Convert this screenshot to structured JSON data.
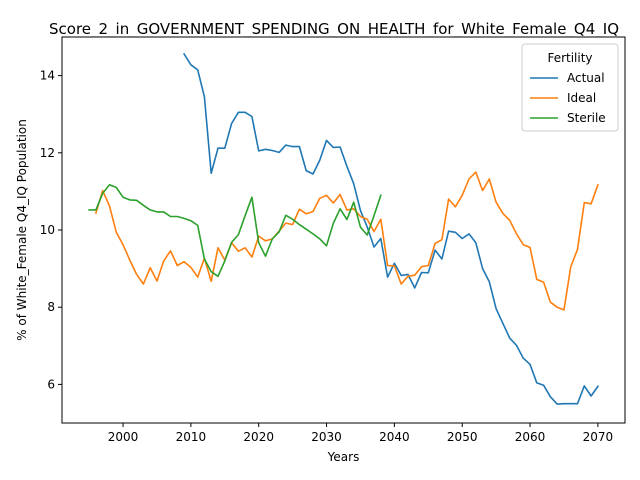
{
  "chart_data": {
    "type": "line",
    "title": "Score_2_in_GOVERNMENT_SPENDING_ON_HEALTH_for_White_Female_Q4_IQ",
    "xlabel": "Years",
    "ylabel": "% of White_Female Q4_IQ Population",
    "xlim": [
      1991,
      2074
    ],
    "ylim": [
      5.0,
      15.0
    ],
    "xticks": [
      2000,
      2010,
      2020,
      2030,
      2040,
      2050,
      2060,
      2070
    ],
    "yticks": [
      6,
      8,
      10,
      12,
      14
    ],
    "grid": false,
    "legend": {
      "title": "Fertility",
      "placement": "top-right"
    },
    "series": [
      {
        "name": "Actual",
        "color": "#1f77b4",
        "x": [
          2009,
          2010,
          2011,
          2012,
          2013,
          2014,
          2015,
          2016,
          2017,
          2018,
          2019,
          2020,
          2021,
          2022,
          2023,
          2024,
          2025,
          2026,
          2027,
          2028,
          2029,
          2030,
          2031,
          2032,
          2033,
          2034,
          2035,
          2036,
          2037,
          2038,
          2039,
          2040,
          2041,
          2042,
          2043,
          2044,
          2045,
          2046,
          2047,
          2048,
          2049,
          2050,
          2051,
          2052,
          2053,
          2054,
          2055,
          2056,
          2057,
          2058,
          2059,
          2060,
          2061,
          2062,
          2063,
          2064,
          2065,
          2066,
          2067,
          2068,
          2069,
          2070
        ],
        "values": [
          14.56,
          14.28,
          14.15,
          13.45,
          11.47,
          12.12,
          12.12,
          12.76,
          13.05,
          13.05,
          12.94,
          12.05,
          12.09,
          12.06,
          12.01,
          12.2,
          12.16,
          12.16,
          11.54,
          11.45,
          11.81,
          12.32,
          12.14,
          12.15,
          11.65,
          11.2,
          10.5,
          10.08,
          9.56,
          9.78,
          8.78,
          9.14,
          8.82,
          8.85,
          8.5,
          8.9,
          8.89,
          9.48,
          9.25,
          9.97,
          9.94,
          9.78,
          9.9,
          9.67,
          9.0,
          8.66,
          7.96,
          7.58,
          7.2,
          7.01,
          6.68,
          6.52,
          6.04,
          5.98,
          5.68,
          5.49,
          5.5,
          5.5,
          5.5,
          5.96,
          5.7,
          5.95
        ]
      },
      {
        "name": "Ideal",
        "color": "#ff7f0e",
        "x": [
          1996,
          1997,
          1998,
          1999,
          2000,
          2001,
          2002,
          2003,
          2004,
          2005,
          2006,
          2007,
          2008,
          2009,
          2010,
          2011,
          2012,
          2013,
          2014,
          2015,
          2016,
          2017,
          2018,
          2019,
          2020,
          2021,
          2022,
          2023,
          2024,
          2025,
          2026,
          2027,
          2028,
          2029,
          2030,
          2031,
          2032,
          2033,
          2034,
          2035,
          2036,
          2037,
          2038,
          2039,
          2040,
          2041,
          2042,
          2043,
          2044,
          2045,
          2046,
          2047,
          2048,
          2049,
          2050,
          2051,
          2052,
          2053,
          2054,
          2055,
          2056,
          2057,
          2058,
          2059,
          2060,
          2061,
          2062,
          2063,
          2064,
          2065,
          2066,
          2067,
          2068,
          2069,
          2070
        ],
        "values": [
          10.44,
          11.02,
          10.62,
          9.94,
          9.62,
          9.22,
          8.85,
          8.6,
          9.02,
          8.68,
          9.2,
          9.46,
          9.08,
          9.18,
          9.03,
          8.78,
          9.27,
          8.67,
          9.54,
          9.22,
          9.67,
          9.45,
          9.54,
          9.3,
          9.84,
          9.72,
          9.77,
          9.97,
          10.18,
          10.14,
          10.54,
          10.42,
          10.48,
          10.82,
          10.9,
          10.7,
          10.92,
          10.52,
          10.55,
          10.35,
          10.28,
          9.96,
          10.28,
          9.08,
          9.07,
          8.6,
          8.8,
          8.83,
          9.05,
          9.08,
          9.65,
          9.75,
          10.8,
          10.6,
          10.9,
          11.32,
          11.5,
          11.02,
          11.32,
          10.72,
          10.43,
          10.25,
          9.9,
          9.62,
          9.55,
          8.72,
          8.65,
          8.13,
          8.0,
          7.93,
          9.04,
          9.5,
          10.71,
          10.68,
          11.17
        ]
      },
      {
        "name": "Sterile",
        "color": "#2ca02c",
        "x": [
          1995,
          1996,
          1997,
          1998,
          1999,
          2000,
          2001,
          2002,
          2003,
          2004,
          2005,
          2006,
          2007,
          2008,
          2009,
          2010,
          2011,
          2012,
          2013,
          2014,
          2015,
          2016,
          2017,
          2018,
          2019,
          2020,
          2021,
          2022,
          2023,
          2024,
          2025,
          2026,
          2027,
          2028,
          2029,
          2030,
          2031,
          2032,
          2033,
          2034,
          2035,
          2036,
          2037,
          2038
        ],
        "values": [
          10.52,
          10.52,
          10.95,
          11.17,
          11.1,
          10.85,
          10.78,
          10.77,
          10.64,
          10.52,
          10.47,
          10.47,
          10.35,
          10.35,
          10.3,
          10.24,
          10.12,
          9.25,
          8.92,
          8.8,
          9.2,
          9.68,
          9.88,
          10.37,
          10.85,
          9.67,
          9.32,
          9.77,
          9.95,
          10.38,
          10.28,
          10.14,
          10.02,
          9.9,
          9.77,
          9.59,
          10.17,
          10.55,
          10.27,
          10.72,
          10.07,
          9.87,
          10.37,
          10.9
        ]
      }
    ]
  }
}
